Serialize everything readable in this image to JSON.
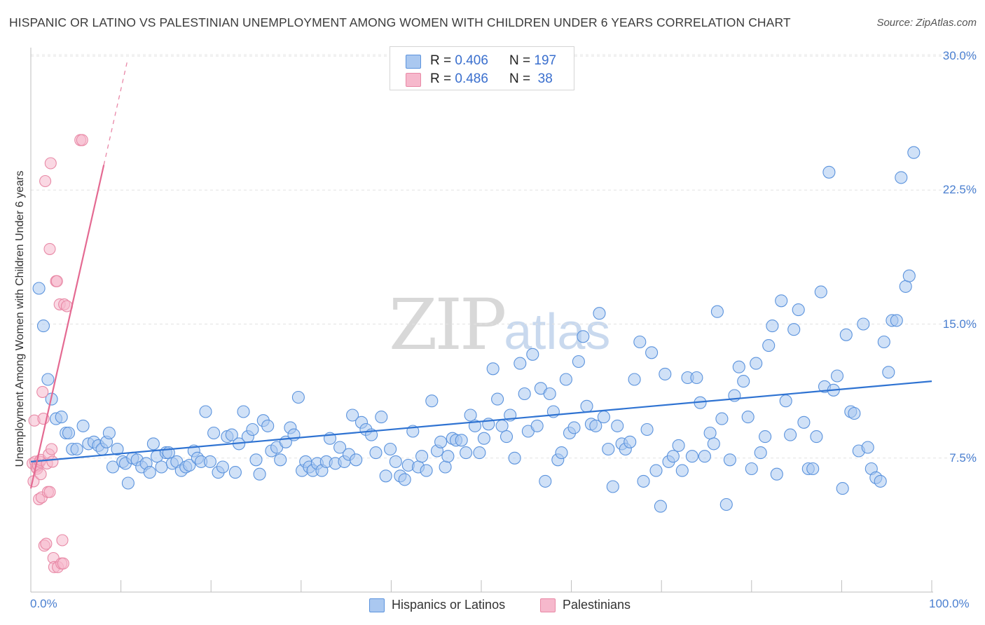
{
  "header": {
    "title": "HISPANIC OR LATINO VS PALESTINIAN UNEMPLOYMENT AMONG WOMEN WITH CHILDREN UNDER 6 YEARS CORRELATION CHART",
    "source": "Source: ZipAtlas.com"
  },
  "watermark": {
    "zip": "ZIP",
    "atlas": "atlas"
  },
  "legend_top": {
    "rows": [
      {
        "r_label": "R = ",
        "r_value": "0.406",
        "n_label": "N = ",
        "n_value": "197",
        "color": "#aac8f0"
      },
      {
        "r_label": "R = ",
        "r_value": "0.486",
        "n_label": "N = ",
        "n_value": " 38",
        "color": "#f6b8cc"
      }
    ]
  },
  "chart_data": {
    "type": "scatter",
    "title": "HISPANIC OR LATINO VS PALESTINIAN UNEMPLOYMENT AMONG WOMEN WITH CHILDREN UNDER 6 YEARS CORRELATION CHART",
    "xlabel": "",
    "ylabel": "Unemployment Among Women with Children Under 6 years",
    "xlim": [
      0,
      100
    ],
    "ylim": [
      0,
      31
    ],
    "x_tick_labels": [
      "0.0%",
      "100.0%"
    ],
    "y_ticks": [
      {
        "value": 7.5,
        "label": "7.5%"
      },
      {
        "value": 15.0,
        "label": "15.0%"
      },
      {
        "value": 22.5,
        "label": "22.5%"
      },
      {
        "value": 30.0,
        "label": "30.0%"
      }
    ],
    "grid": true,
    "legend_position": "bottom-center",
    "series": [
      {
        "name": "Hispanics or Latinos",
        "color": "#5b93dd",
        "fill": "#aac8f0",
        "r": 0.406,
        "n": 197,
        "trend": {
          "x0": 0,
          "y0": 7.3,
          "x1": 100,
          "y1": 11.8,
          "color": "#2f73d2"
        },
        "points": [
          [
            0.9,
            17.0
          ],
          [
            1.4,
            14.9
          ],
          [
            1.9,
            11.9
          ],
          [
            2.3,
            10.8
          ],
          [
            2.8,
            9.7
          ],
          [
            3.4,
            9.8
          ],
          [
            3.9,
            8.9
          ],
          [
            4.2,
            8.9
          ],
          [
            4.6,
            8.0
          ],
          [
            5.1,
            8.0
          ],
          [
            5.8,
            9.3
          ],
          [
            6.4,
            8.3
          ],
          [
            7.0,
            8.4
          ],
          [
            7.5,
            8.2
          ],
          [
            7.9,
            8.0
          ],
          [
            8.4,
            8.4
          ],
          [
            8.7,
            8.9
          ],
          [
            9.1,
            7.0
          ],
          [
            9.6,
            8.0
          ],
          [
            10.2,
            7.3
          ],
          [
            10.5,
            7.2
          ],
          [
            10.8,
            6.1
          ],
          [
            11.3,
            7.5
          ],
          [
            11.8,
            7.4
          ],
          [
            12.3,
            7.0
          ],
          [
            12.8,
            7.2
          ],
          [
            13.2,
            6.7
          ],
          [
            13.6,
            8.3
          ],
          [
            14.0,
            7.6
          ],
          [
            14.5,
            7.0
          ],
          [
            15.0,
            7.8
          ],
          [
            15.3,
            7.8
          ],
          [
            15.7,
            7.2
          ],
          [
            16.2,
            7.3
          ],
          [
            16.7,
            6.8
          ],
          [
            17.2,
            7.0
          ],
          [
            17.6,
            7.1
          ],
          [
            18.1,
            7.9
          ],
          [
            18.5,
            7.5
          ],
          [
            18.9,
            7.3
          ],
          [
            19.4,
            10.1
          ],
          [
            19.9,
            7.3
          ],
          [
            20.3,
            8.9
          ],
          [
            20.8,
            6.7
          ],
          [
            21.3,
            7.0
          ],
          [
            21.8,
            8.7
          ],
          [
            22.3,
            8.8
          ],
          [
            22.7,
            6.7
          ],
          [
            23.1,
            8.3
          ],
          [
            23.6,
            10.1
          ],
          [
            24.1,
            8.7
          ],
          [
            24.6,
            9.1
          ],
          [
            25.0,
            7.4
          ],
          [
            25.4,
            6.6
          ],
          [
            25.8,
            9.6
          ],
          [
            26.3,
            9.3
          ],
          [
            26.7,
            7.9
          ],
          [
            27.3,
            8.1
          ],
          [
            27.7,
            7.4
          ],
          [
            28.3,
            8.4
          ],
          [
            28.8,
            9.2
          ],
          [
            29.2,
            8.8
          ],
          [
            29.7,
            10.9
          ],
          [
            30.1,
            6.8
          ],
          [
            30.5,
            7.3
          ],
          [
            30.9,
            7.0
          ],
          [
            31.3,
            6.8
          ],
          [
            31.8,
            7.2
          ],
          [
            32.3,
            6.8
          ],
          [
            32.8,
            7.3
          ],
          [
            33.2,
            8.6
          ],
          [
            33.8,
            7.2
          ],
          [
            34.3,
            8.1
          ],
          [
            34.8,
            7.3
          ],
          [
            35.3,
            7.7
          ],
          [
            35.7,
            9.9
          ],
          [
            36.1,
            7.4
          ],
          [
            36.7,
            9.5
          ],
          [
            37.2,
            9.1
          ],
          [
            37.8,
            8.8
          ],
          [
            38.3,
            7.8
          ],
          [
            38.9,
            9.8
          ],
          [
            39.4,
            6.5
          ],
          [
            39.9,
            8.0
          ],
          [
            40.5,
            7.3
          ],
          [
            41.0,
            6.5
          ],
          [
            41.5,
            6.3
          ],
          [
            41.9,
            7.1
          ],
          [
            42.4,
            9.0
          ],
          [
            43.0,
            7.0
          ],
          [
            43.4,
            7.6
          ],
          [
            43.9,
            6.8
          ],
          [
            44.5,
            10.7
          ],
          [
            45.1,
            7.9
          ],
          [
            45.5,
            8.4
          ],
          [
            46.0,
            7.0
          ],
          [
            46.3,
            7.6
          ],
          [
            46.8,
            8.6
          ],
          [
            47.2,
            8.5
          ],
          [
            47.8,
            8.5
          ],
          [
            48.3,
            7.8
          ],
          [
            48.8,
            9.9
          ],
          [
            49.3,
            9.3
          ],
          [
            49.8,
            7.8
          ],
          [
            50.3,
            8.6
          ],
          [
            50.8,
            9.4
          ],
          [
            51.3,
            12.5
          ],
          [
            51.8,
            10.8
          ],
          [
            52.3,
            9.3
          ],
          [
            52.8,
            8.7
          ],
          [
            53.2,
            9.9
          ],
          [
            53.7,
            7.5
          ],
          [
            54.3,
            12.8
          ],
          [
            54.8,
            11.1
          ],
          [
            55.2,
            9.0
          ],
          [
            55.7,
            13.3
          ],
          [
            56.2,
            9.3
          ],
          [
            56.6,
            11.4
          ],
          [
            57.1,
            6.2
          ],
          [
            57.6,
            11.1
          ],
          [
            58.0,
            10.1
          ],
          [
            58.5,
            7.4
          ],
          [
            58.9,
            7.8
          ],
          [
            59.4,
            11.9
          ],
          [
            59.8,
            8.9
          ],
          [
            60.3,
            9.2
          ],
          [
            60.8,
            12.9
          ],
          [
            61.3,
            14.3
          ],
          [
            61.7,
            10.4
          ],
          [
            62.2,
            9.4
          ],
          [
            62.7,
            9.3
          ],
          [
            63.1,
            15.6
          ],
          [
            63.6,
            9.8
          ],
          [
            64.1,
            8.0
          ],
          [
            64.6,
            5.9
          ],
          [
            65.1,
            9.3
          ],
          [
            65.6,
            8.3
          ],
          [
            66.0,
            8.0
          ],
          [
            66.5,
            8.4
          ],
          [
            67.0,
            11.9
          ],
          [
            67.6,
            14.0
          ],
          [
            68.0,
            6.2
          ],
          [
            68.4,
            9.1
          ],
          [
            68.9,
            13.4
          ],
          [
            69.4,
            6.8
          ],
          [
            69.9,
            4.8
          ],
          [
            70.4,
            12.2
          ],
          [
            70.8,
            7.3
          ],
          [
            71.3,
            7.6
          ],
          [
            71.9,
            8.2
          ],
          [
            72.3,
            6.8
          ],
          [
            72.9,
            12.0
          ],
          [
            73.4,
            7.6
          ],
          [
            73.9,
            12.0
          ],
          [
            74.3,
            10.6
          ],
          [
            74.8,
            7.6
          ],
          [
            75.4,
            8.9
          ],
          [
            75.8,
            8.3
          ],
          [
            76.2,
            15.7
          ],
          [
            76.7,
            9.7
          ],
          [
            77.2,
            4.9
          ],
          [
            77.6,
            7.4
          ],
          [
            78.1,
            11.0
          ],
          [
            78.6,
            12.6
          ],
          [
            79.1,
            11.8
          ],
          [
            79.6,
            9.8
          ],
          [
            80.0,
            6.9
          ],
          [
            80.5,
            12.8
          ],
          [
            81.0,
            7.8
          ],
          [
            81.5,
            8.7
          ],
          [
            81.9,
            13.8
          ],
          [
            82.3,
            14.9
          ],
          [
            82.8,
            6.6
          ],
          [
            83.3,
            16.3
          ],
          [
            83.8,
            10.7
          ],
          [
            84.3,
            8.8
          ],
          [
            84.7,
            14.7
          ],
          [
            85.2,
            15.8
          ],
          [
            85.8,
            9.5
          ],
          [
            86.3,
            6.9
          ],
          [
            86.8,
            6.9
          ],
          [
            87.2,
            8.7
          ],
          [
            87.7,
            16.8
          ],
          [
            88.1,
            11.5
          ],
          [
            88.6,
            23.5
          ],
          [
            89.1,
            11.3
          ],
          [
            89.5,
            12.1
          ],
          [
            90.1,
            5.8
          ],
          [
            90.5,
            14.4
          ],
          [
            91.0,
            10.1
          ],
          [
            91.4,
            10.0
          ],
          [
            91.9,
            7.9
          ],
          [
            92.4,
            15.0
          ],
          [
            92.9,
            8.1
          ],
          [
            93.3,
            6.9
          ],
          [
            93.8,
            6.4
          ],
          [
            94.3,
            6.2
          ],
          [
            94.7,
            14.0
          ],
          [
            95.2,
            12.3
          ],
          [
            95.6,
            15.2
          ],
          [
            96.1,
            15.2
          ],
          [
            96.6,
            23.2
          ],
          [
            97.1,
            17.1
          ],
          [
            97.5,
            17.7
          ],
          [
            98.0,
            24.6
          ]
        ]
      },
      {
        "name": "Palestinians",
        "color": "#e889a6",
        "fill": "#f6b8cc",
        "r": 0.486,
        "n": 38,
        "trend": {
          "x0": 0,
          "y0": 5.8,
          "x1": 8.1,
          "y1": 23.9,
          "color": "#e46a92",
          "dash_x1": 10.7,
          "dash_y1": 29.7
        },
        "points": [
          [
            0.2,
            7.2
          ],
          [
            0.3,
            6.2
          ],
          [
            0.4,
            9.6
          ],
          [
            0.5,
            7.3
          ],
          [
            0.6,
            7.0
          ],
          [
            0.7,
            6.9
          ],
          [
            0.8,
            7.1
          ],
          [
            0.9,
            5.2
          ],
          [
            1.0,
            7.3
          ],
          [
            1.1,
            6.6
          ],
          [
            1.1,
            7.4
          ],
          [
            1.2,
            5.3
          ],
          [
            1.3,
            11.2
          ],
          [
            1.4,
            9.7
          ],
          [
            1.5,
            2.6
          ],
          [
            1.6,
            23.0
          ],
          [
            1.7,
            2.7
          ],
          [
            1.8,
            7.2
          ],
          [
            1.9,
            5.6
          ],
          [
            2.0,
            7.7
          ],
          [
            2.1,
            19.2
          ],
          [
            2.2,
            24.0
          ],
          [
            2.3,
            8.0
          ],
          [
            2.4,
            7.3
          ],
          [
            2.5,
            1.9
          ],
          [
            2.6,
            1.4
          ],
          [
            2.8,
            17.4
          ],
          [
            2.9,
            17.4
          ],
          [
            3.0,
            1.4
          ],
          [
            3.2,
            16.1
          ],
          [
            3.4,
            1.6
          ],
          [
            3.5,
            2.9
          ],
          [
            3.6,
            1.6
          ],
          [
            3.7,
            16.1
          ],
          [
            4.0,
            16.0
          ],
          [
            5.5,
            25.3
          ],
          [
            5.7,
            25.3
          ],
          [
            2.1,
            5.6
          ]
        ]
      }
    ]
  },
  "legend_bottom": {
    "items": [
      {
        "label": "Hispanics or Latinos",
        "color": "#aac8f0"
      },
      {
        "label": "Palestinians",
        "color": "#f6b8cc"
      }
    ]
  }
}
